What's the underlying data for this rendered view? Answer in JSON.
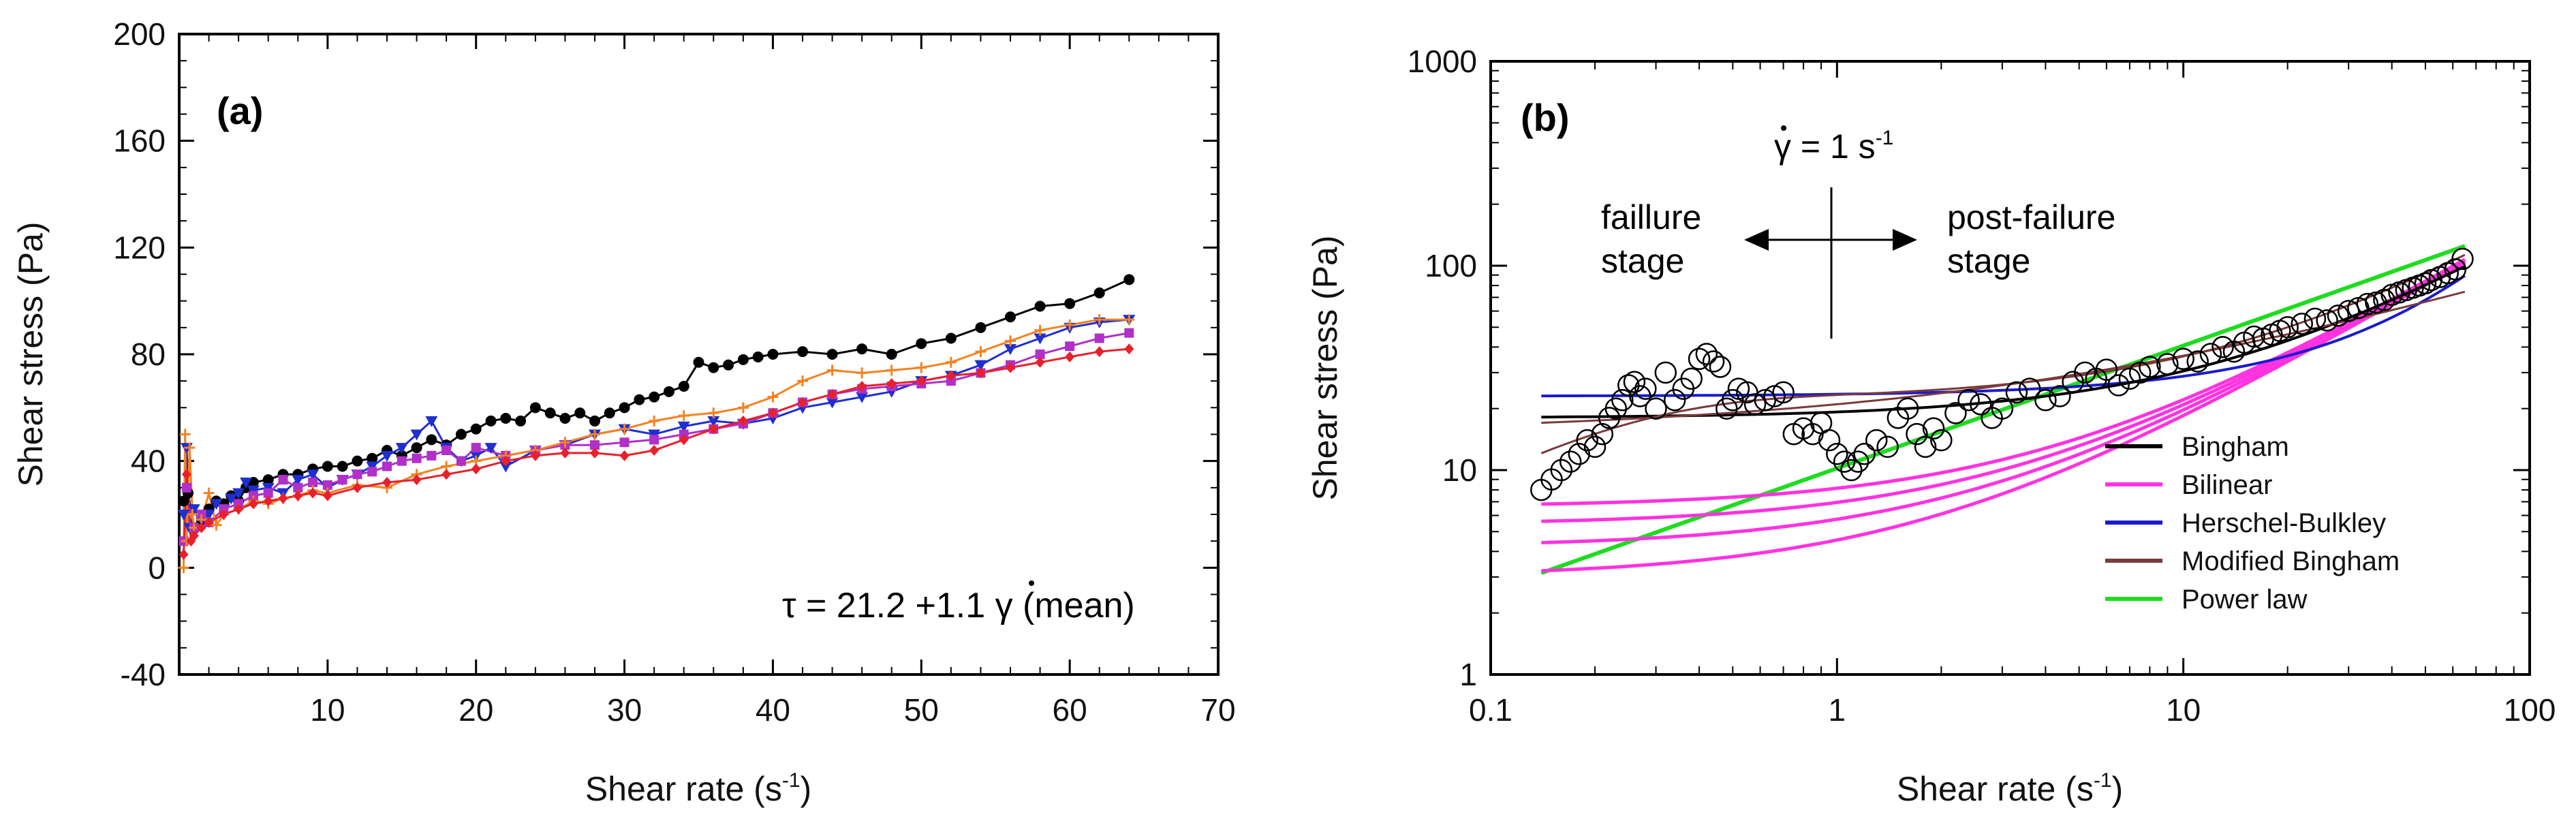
{
  "chart_data": [
    {
      "type": "line",
      "panel_label": "(a)",
      "xlabel": "Shear rate (s",
      "xlabel_sup": "-1",
      "xlabel_close": ")",
      "ylabel": "Shear stress (Pa)",
      "xlim": [
        0,
        70
      ],
      "ylim": [
        -40,
        200
      ],
      "xticks": [
        10,
        20,
        30,
        40,
        50,
        60,
        70
      ],
      "yticks": [
        -40,
        0,
        40,
        80,
        120,
        160,
        200
      ],
      "equation": {
        "prefix": "τ = 21.2 +1.1 ",
        "symbol": "γ",
        "suffix": " (mean)"
      },
      "series": [
        {
          "name": "black",
          "color": "#000000",
          "marker": "circle",
          "x": [
            0.3,
            0.6,
            1.0,
            1.5,
            2.0,
            2.5,
            3.0,
            3.5,
            4.0,
            4.5,
            5.0,
            6.0,
            7.0,
            8.0,
            9.0,
            10.0,
            11.0,
            12.0,
            13.0,
            14.0,
            15.0,
            16.0,
            17.0,
            18.0,
            19.0,
            20.0,
            21.0,
            22.0,
            23.0,
            24.0,
            25.0,
            26.0,
            27.0,
            28.0,
            29.0,
            30.0,
            31.0,
            32.0,
            33.0,
            34.0,
            35.0,
            36.0,
            37.0,
            38.0,
            39.0,
            40.0,
            42.0,
            44.0,
            46.0,
            48.0,
            50.0,
            52.0,
            54.0,
            56.0,
            58.0,
            60.0,
            62.0,
            64.0
          ],
          "y": [
            25,
            28,
            15,
            18,
            22,
            25,
            24,
            27,
            25,
            30,
            32,
            33,
            35,
            35,
            37,
            38,
            38,
            40,
            41,
            44,
            42,
            45,
            48,
            46,
            50,
            52,
            55,
            56,
            55,
            60,
            58,
            56,
            58,
            55,
            58,
            60,
            63,
            64,
            66,
            68,
            77,
            75,
            76,
            78,
            79,
            80,
            81,
            80,
            82,
            80,
            84,
            86,
            90,
            94,
            98,
            99,
            103,
            108
          ]
        },
        {
          "name": "blue",
          "color": "#1f2fd0",
          "marker": "triangle-down",
          "x": [
            0.3,
            0.5,
            0.7,
            1.0,
            1.5,
            2.0,
            2.5,
            3.0,
            3.5,
            4.0,
            4.5,
            5.0,
            6.0,
            7.0,
            8.0,
            9.0,
            10.0,
            11.0,
            12.0,
            13.0,
            14.0,
            15.0,
            16.0,
            17.0,
            18.0,
            19.0,
            20.0,
            21.0,
            22.0,
            24.0,
            26.0,
            28.0,
            30.0,
            32.0,
            34.0,
            36.0,
            38.0,
            40.0,
            42.0,
            44.0,
            46.0,
            48.0,
            50.0,
            52.0,
            54.0,
            56.0,
            58.0,
            60.0,
            62.0,
            64.0
          ],
          "y": [
            20,
            45,
            15,
            22,
            18,
            20,
            24,
            22,
            26,
            28,
            32,
            29,
            30,
            28,
            33,
            35,
            30,
            33,
            35,
            38,
            42,
            45,
            50,
            55,
            45,
            40,
            42,
            45,
            38,
            44,
            46,
            50,
            52,
            50,
            53,
            55,
            54,
            56,
            60,
            62,
            64,
            66,
            70,
            72,
            76,
            82,
            86,
            90,
            92,
            93
          ]
        },
        {
          "name": "purple",
          "color": "#b030c8",
          "marker": "square",
          "x": [
            0.3,
            0.5,
            1.0,
            1.5,
            2.0,
            3.0,
            4.0,
            5.0,
            6.0,
            7.0,
            8.0,
            9.0,
            10.0,
            11.0,
            12.0,
            13.0,
            14.0,
            15.0,
            16.0,
            17.0,
            18.0,
            19.0,
            20.0,
            22.0,
            24.0,
            26.0,
            28.0,
            30.0,
            32.0,
            34.0,
            36.0,
            38.0,
            40.0,
            42.0,
            44.0,
            46.0,
            48.0,
            50.0,
            52.0,
            54.0,
            56.0,
            58.0,
            60.0,
            62.0,
            64.0
          ],
          "y": [
            10,
            30,
            15,
            20,
            17,
            22,
            24,
            27,
            28,
            33,
            30,
            32,
            31,
            33,
            35,
            36,
            38,
            40,
            41,
            42,
            44,
            40,
            45,
            42,
            44,
            46,
            46,
            47,
            48,
            50,
            52,
            54,
            58,
            62,
            65,
            67,
            68,
            69,
            70,
            73,
            76,
            80,
            83,
            86,
            88
          ]
        },
        {
          "name": "orange",
          "color": "#f58220",
          "marker": "plus",
          "x": [
            0.3,
            0.4,
            0.5,
            0.7,
            0.9,
            1.0,
            1.5,
            2.0,
            2.5,
            3.0,
            4.0,
            5.0,
            6.0,
            7.0,
            8.0,
            9.0,
            10.0,
            12.0,
            14.0,
            16.0,
            18.0,
            20.0,
            22.0,
            24.0,
            26.0,
            28.0,
            30.0,
            32.0,
            34.0,
            36.0,
            38.0,
            40.0,
            42.0,
            44.0,
            46.0,
            48.0,
            50.0,
            52.0,
            54.0,
            56.0,
            58.0,
            60.0,
            62.0,
            64.0
          ],
          "y": [
            0,
            50,
            10,
            45,
            20,
            15,
            18,
            28,
            16,
            20,
            22,
            25,
            24,
            26,
            27,
            29,
            28,
            31,
            30,
            35,
            38,
            40,
            42,
            44,
            47,
            50,
            52,
            55,
            57,
            58,
            60,
            64,
            70,
            74,
            73,
            74,
            75,
            77,
            81,
            85,
            89,
            91,
            93,
            93
          ]
        },
        {
          "name": "red",
          "color": "#e8202a",
          "marker": "diamond",
          "x": [
            0.3,
            0.5,
            0.8,
            1.0,
            1.5,
            2.0,
            3.0,
            4.0,
            5.0,
            6.0,
            7.0,
            8.0,
            9.0,
            10.0,
            12.0,
            14.0,
            16.0,
            18.0,
            20.0,
            22.0,
            24.0,
            26.0,
            28.0,
            30.0,
            32.0,
            34.0,
            36.0,
            38.0,
            40.0,
            42.0,
            44.0,
            46.0,
            48.0,
            50.0,
            52.0,
            54.0,
            56.0,
            58.0,
            60.0,
            62.0,
            64.0
          ],
          "y": [
            5,
            35,
            10,
            12,
            15,
            17,
            20,
            22,
            24,
            25,
            26,
            27,
            28,
            27,
            30,
            32,
            33,
            35,
            37,
            40,
            42,
            43,
            43,
            42,
            44,
            48,
            52,
            55,
            58,
            62,
            65,
            68,
            69,
            70,
            72,
            73,
            75,
            77,
            79,
            81,
            82
          ]
        }
      ]
    },
    {
      "type": "scatter",
      "panel_label": "(b)",
      "xlabel": "Shear rate (s",
      "xlabel_sup": "-1",
      "xlabel_close": ")",
      "ylabel": "Shear stress (Pa)",
      "xscale": "log",
      "yscale": "log",
      "xlim": [
        0.1,
        100
      ],
      "ylim": [
        1,
        1000
      ],
      "xticks": [
        0.1,
        1,
        10,
        100
      ],
      "xtick_labels": [
        "0.1",
        "1",
        "10",
        "100"
      ],
      "yticks": [
        1,
        10,
        100,
        1000
      ],
      "ytick_labels": [
        "1",
        "10",
        "100",
        "1000"
      ],
      "annotations": {
        "gamma": "γ",
        "rate_text": " = 1 s",
        "rate_sup": "-1",
        "left_line1": "faillure",
        "left_line2": "stage",
        "right_line1": "post-failure",
        "right_line2": "stage"
      },
      "scatter": {
        "name": "measured",
        "x": [
          0.14,
          0.15,
          0.16,
          0.17,
          0.18,
          0.19,
          0.2,
          0.21,
          0.22,
          0.23,
          0.24,
          0.25,
          0.26,
          0.27,
          0.28,
          0.3,
          0.32,
          0.34,
          0.36,
          0.38,
          0.4,
          0.42,
          0.44,
          0.46,
          0.48,
          0.5,
          0.52,
          0.55,
          0.58,
          0.62,
          0.66,
          0.7,
          0.75,
          0.8,
          0.85,
          0.9,
          0.95,
          1.0,
          1.05,
          1.1,
          1.15,
          1.2,
          1.3,
          1.4,
          1.5,
          1.6,
          1.7,
          1.8,
          1.9,
          2.0,
          2.2,
          2.4,
          2.6,
          2.8,
          3.0,
          3.3,
          3.6,
          4.0,
          4.4,
          4.8,
          5.2,
          5.6,
          6.0,
          6.5,
          7.0,
          7.5,
          8.0,
          9.0,
          10.0,
          11.0,
          12.0,
          13.0,
          14.0,
          15.0,
          16.0,
          17.0,
          18.0,
          19.0,
          20.0,
          22.0,
          24.0,
          26.0,
          28.0,
          30.0,
          32.0,
          34.0,
          36.0,
          38.0,
          40.0,
          42.0,
          44.0,
          46.0,
          48.0,
          50.0,
          52.0,
          55.0,
          58.0,
          61.0,
          64.0
        ],
        "y": [
          8,
          9,
          10,
          11,
          12,
          14,
          13,
          15,
          18,
          20,
          22,
          26,
          27,
          23,
          25,
          20,
          30,
          22,
          25,
          28,
          35,
          37,
          34,
          32,
          20,
          22,
          25,
          24,
          21,
          22,
          23,
          24,
          15,
          16,
          15,
          17,
          14,
          12,
          11,
          10,
          11,
          12,
          14,
          13,
          18,
          20,
          15,
          13,
          16,
          14,
          19,
          22,
          21,
          18,
          20,
          24,
          25,
          22,
          23,
          27,
          30,
          28,
          31,
          26,
          28,
          30,
          32,
          33,
          35,
          34,
          37,
          40,
          38,
          42,
          45,
          44,
          46,
          48,
          50,
          52,
          55,
          54,
          57,
          60,
          62,
          65,
          66,
          68,
          72,
          74,
          76,
          78,
          80,
          82,
          85,
          88,
          92,
          96,
          108
        ]
      },
      "series": [
        {
          "name": "Bingham",
          "color": "#000000",
          "legend": "Bingham"
        },
        {
          "name": "Bilinear",
          "color": "#ff33e0",
          "legend": "Bilinear"
        },
        {
          "name": "Herschel-Bulkley",
          "color": "#1a1acc",
          "legend": "Herschel-Bulkley"
        },
        {
          "name": "Modified Bingham",
          "color": "#7a3b3b",
          "legend": "Modified Bingham"
        },
        {
          "name": "Power law",
          "color": "#1fdc1f",
          "legend": "Power law"
        }
      ],
      "x_range": [
        0.14,
        65
      ]
    }
  ]
}
